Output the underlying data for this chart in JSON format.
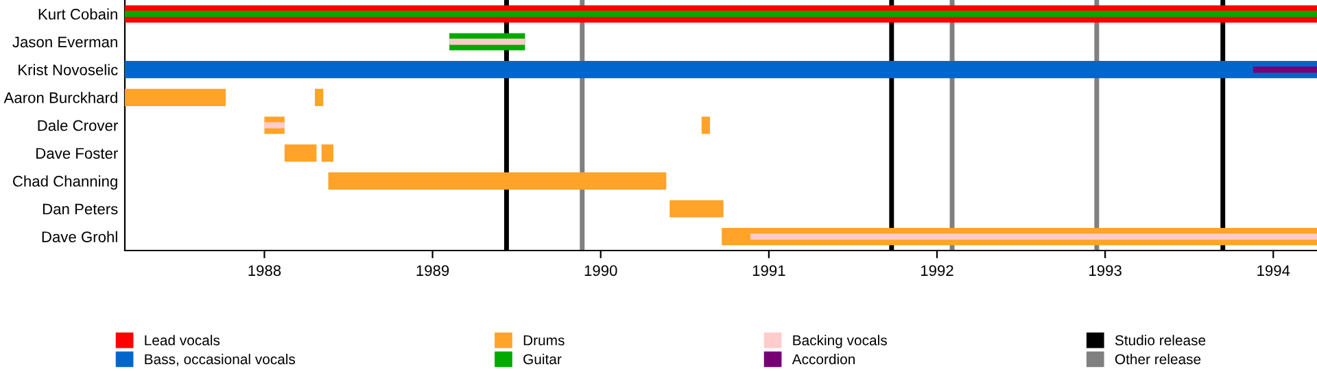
{
  "chart_data": {
    "type": "bar",
    "orientation": "horizontal",
    "categories": [
      "Kurt Cobain",
      "Jason Everman",
      "Krist Novoselic",
      "Aaron Burckhard",
      "Dale Crover",
      "Dave Foster",
      "Chad Channing",
      "Dan Peters",
      "Dave Grohl"
    ],
    "series": [
      {
        "name": "Lead vocals",
        "color": "#ff0000",
        "base": [
          1987.17,
          null,
          null,
          null,
          null,
          null,
          null,
          null,
          null
        ],
        "values": [
          7.09,
          null,
          null,
          null,
          null,
          null,
          null,
          null,
          null
        ]
      },
      {
        "name": "Bass, occasional vocals",
        "color": "#0066cc",
        "base": [
          null,
          null,
          1987.17,
          null,
          null,
          null,
          null,
          null,
          null
        ],
        "values": [
          null,
          null,
          7.09,
          null,
          null,
          null,
          null,
          null,
          null
        ]
      },
      {
        "name": "Drums",
        "color": "#ffa329",
        "base": [
          null,
          null,
          null,
          1987.17,
          1988.0,
          1988.12,
          1988.38,
          1990.41,
          1990.72
        ],
        "values": [
          null,
          null,
          null,
          0.6,
          0.12,
          0.19,
          2.01,
          0.32,
          3.54
        ]
      },
      {
        "color": "#ffa329",
        "base": [
          null,
          null,
          null,
          1988.3,
          1990.6,
          1988.34,
          null,
          null,
          null
        ],
        "values": [
          null,
          null,
          null,
          0.05,
          0.05,
          0.07,
          null,
          null,
          null
        ]
      },
      {
        "name": "Guitar",
        "color": "#00aa00",
        "base": [
          1987.17,
          1989.1,
          null,
          null,
          null,
          null,
          null,
          null,
          null
        ],
        "values": [
          7.09,
          0.45,
          null,
          null,
          null,
          null,
          null,
          null,
          null
        ]
      },
      {
        "name": "Backing vocals",
        "color": "#ffcccc",
        "base": [
          null,
          1989.1,
          null,
          null,
          1988.0,
          null,
          null,
          null,
          1990.89
        ],
        "values": [
          null,
          0.45,
          null,
          null,
          0.12,
          null,
          null,
          null,
          3.37
        ]
      },
      {
        "name": "Accordion",
        "color": "#770077",
        "base": [
          null,
          null,
          1993.88,
          null,
          null,
          null,
          null,
          null,
          null
        ],
        "values": [
          null,
          null,
          0.38,
          null,
          null,
          null,
          null,
          null,
          null
        ]
      }
    ],
    "xlim": [
      1987.17,
      1994.26
    ],
    "xticks": [
      1988,
      1989,
      1990,
      1991,
      1992,
      1993,
      1994
    ],
    "ref_lines": [
      {
        "axis": "x",
        "value": 1989.44,
        "label": "Studio release",
        "color": "#000000"
      },
      {
        "axis": "x",
        "value": 1991.73,
        "color": "#000000"
      },
      {
        "axis": "x",
        "value": 1993.7,
        "color": "#000000"
      },
      {
        "axis": "x",
        "value": 1989.89,
        "label": "Other release",
        "color": "#808080"
      },
      {
        "axis": "x",
        "value": 1992.09,
        "color": "#808080"
      },
      {
        "axis": "x",
        "value": 1992.95,
        "color": "#808080"
      }
    ],
    "legend": "bottom",
    "grid": false
  }
}
